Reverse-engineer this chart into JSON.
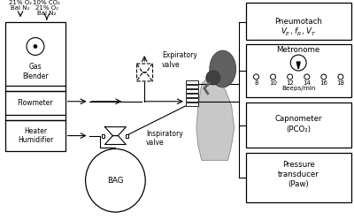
{
  "bg_color": "#ffffff",
  "gas_left": [
    "21% O₂",
    "Bal N₂"
  ],
  "gas_right": [
    "10% CO₂",
    "21% O₂",
    "Bal N₂"
  ],
  "gas_blender_label": "Gas\nBlender",
  "flowmeter_label": "Flowmeter",
  "heater_label": "Heater\nHumidifier",
  "bag_label": "BAG",
  "expiratory_label": "Expiratory\nvalve",
  "inspiratory_label": "Inspiratory\nvalve",
  "pneu_label1": "Pneumotach",
  "pneu_label2": "$\\dot{V}_E$, $f_R$, $V_T$",
  "metro_label": "Metronome",
  "metro_nums": [
    "8",
    "10",
    "12",
    "14",
    "16",
    "18"
  ],
  "metro_bpm": "Beeps/min",
  "capno_label1": "Capnometer",
  "capno_label2": "(PCO₂)",
  "pressure_label1": "Pressure",
  "pressure_label2": "transducer",
  "pressure_label3": "(Paw)"
}
